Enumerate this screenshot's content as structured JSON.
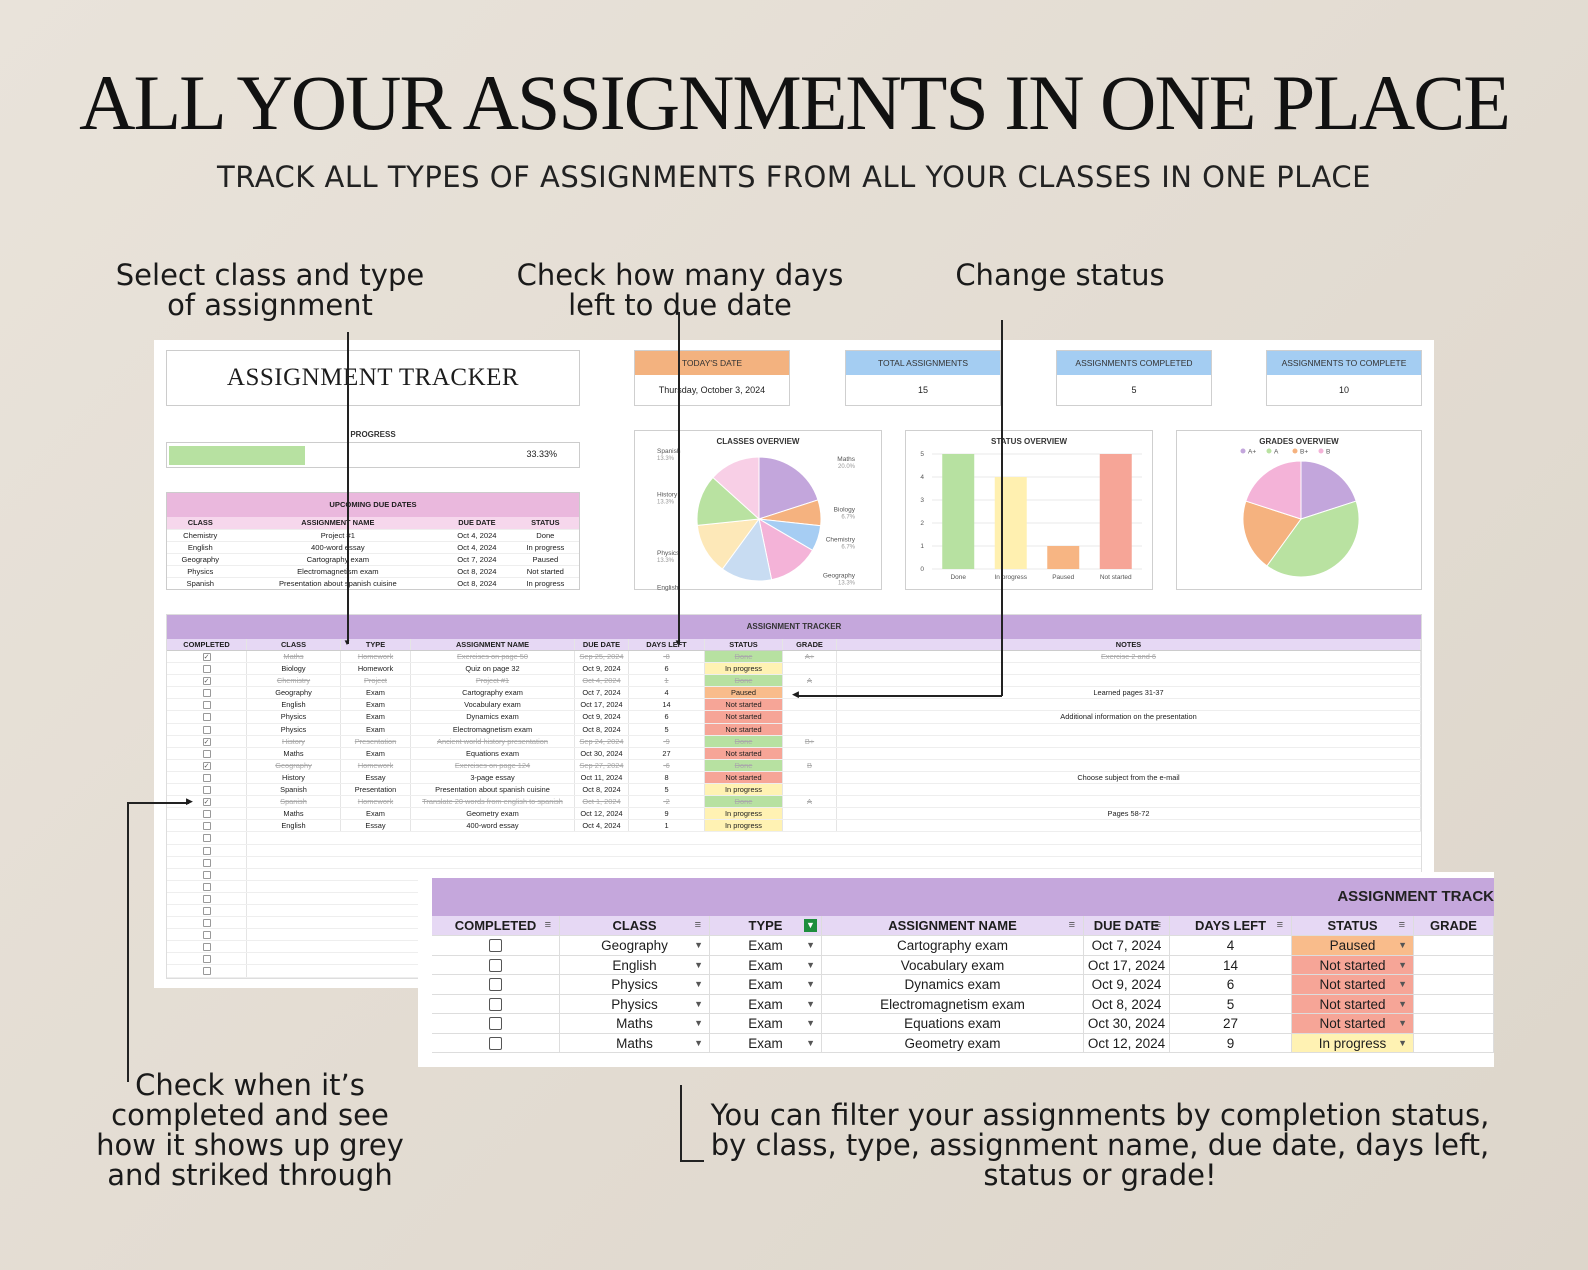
{
  "headline": "ALL YOUR ASSIGNMENTS IN ONE PLACE",
  "subheadline": "TRACK ALL TYPES OF ASSIGNMENTS FROM ALL YOUR CLASSES IN ONE PLACE",
  "callouts": {
    "select": [
      "Select class and type",
      "of assignment"
    ],
    "days": [
      "Check how many days",
      "left to due date"
    ],
    "status": [
      "Change status"
    ],
    "check": [
      "Check when it’s",
      "completed and see",
      "how it shows up grey",
      "and striked through"
    ],
    "filter": [
      "You can filter your assignments by completion status,",
      "by class, type, assignment name, due date, days left,",
      "status or grade!"
    ]
  },
  "dashboard": {
    "title": "ASSIGNMENT TRACKER",
    "cards": [
      {
        "label": "TODAY'S DATE",
        "value": "Thursday, October 3, 2024",
        "color": "#f3b27f"
      },
      {
        "label": "TOTAL ASSIGNMENTS",
        "value": "15",
        "color": "#a4cdf2"
      },
      {
        "label": "ASSIGNMENTS COMPLETED",
        "value": "5",
        "color": "#a4cdf2"
      },
      {
        "label": "ASSIGNMENTS TO COMPLETE",
        "value": "10",
        "color": "#a4cdf2"
      }
    ],
    "progress_label": "PROGRESS",
    "progress_value": "33.33%",
    "progress_fraction": 0.3333,
    "upcoming": {
      "title": "UPCOMING DUE DATES",
      "columns": [
        "CLASS",
        "ASSIGNMENT NAME",
        "DUE DATE",
        "STATUS"
      ],
      "rows": [
        [
          "Chemistry",
          "Project #1",
          "Oct 4, 2024",
          "Done"
        ],
        [
          "English",
          "400-word essay",
          "Oct 4, 2024",
          "In progress"
        ],
        [
          "Geography",
          "Cartography exam",
          "Oct 7, 2024",
          "Paused"
        ],
        [
          "Physics",
          "Electromagnetism exam",
          "Oct 8, 2024",
          "Not started"
        ],
        [
          "Spanish",
          "Presentation about spanish cuisine",
          "Oct 8, 2024",
          "In progress"
        ]
      ]
    }
  },
  "chart_data": [
    {
      "type": "pie",
      "title": "CLASSES OVERVIEW",
      "categories": [
        "Maths",
        "Biology",
        "Chemistry",
        "Geography",
        "English",
        "Physics",
        "History",
        "Spanish"
      ],
      "values": [
        20.0,
        6.7,
        6.7,
        13.3,
        13.3,
        13.3,
        13.3,
        13.3
      ],
      "labels": [
        "20.0%",
        "6.7%",
        "6.7%",
        "13.3%",
        "13.3%",
        "13.3%",
        "13.3%",
        "13.3%"
      ],
      "colors": [
        "#c3a6dc",
        "#f5b27f",
        "#a6cdf3",
        "#f4b3d8",
        "#c8dcf2",
        "#fde8b8",
        "#b9e2a1",
        "#f8cfe6"
      ]
    },
    {
      "type": "bar",
      "title": "STATUS OVERVIEW",
      "categories": [
        "Done",
        "In progress",
        "Paused",
        "Not started"
      ],
      "values": [
        5,
        4,
        1,
        5
      ],
      "ylim": [
        0,
        5
      ],
      "yticks": [
        "0",
        "1",
        "2",
        "3",
        "4",
        "5"
      ],
      "colors": [
        "#b7e1a1",
        "#fff0b0",
        "#f7b583",
        "#f6a597"
      ]
    },
    {
      "type": "pie",
      "title": "GRADES OVERVIEW",
      "categories": [
        "A+",
        "A",
        "B+",
        "B"
      ],
      "values": [
        1,
        2,
        1,
        1
      ],
      "colors": [
        "#c3a6dc",
        "#b9e2a1",
        "#f5b27f",
        "#f4b3d8"
      ]
    }
  ],
  "tracker": {
    "title": "ASSIGNMENT TRACKER",
    "columns": [
      "COMPLETED",
      "CLASS",
      "TYPE",
      "ASSIGNMENT NAME",
      "DUE DATE",
      "DAYS LEFT",
      "STATUS",
      "GRADE",
      "NOTES"
    ],
    "rows": [
      {
        "done": true,
        "class": "Maths",
        "type": "Homework",
        "name": "Exercises on page 50",
        "due": "Sep 25, 2024",
        "days": "-8",
        "status": "Done",
        "grade": "A+",
        "notes": "Exercise 2 and 6"
      },
      {
        "done": false,
        "class": "Biology",
        "type": "Homework",
        "name": "Quiz on page 32",
        "due": "Oct 9, 2024",
        "days": "6",
        "status": "In progress",
        "grade": "",
        "notes": ""
      },
      {
        "done": true,
        "class": "Chemistry",
        "type": "Project",
        "name": "Project #1",
        "due": "Oct 4, 2024",
        "days": "1",
        "status": "Done",
        "grade": "A",
        "notes": ""
      },
      {
        "done": false,
        "class": "Geography",
        "type": "Exam",
        "name": "Cartography exam",
        "due": "Oct 7, 2024",
        "days": "4",
        "status": "Paused",
        "grade": "",
        "notes": "Learned pages 31-37"
      },
      {
        "done": false,
        "class": "English",
        "type": "Exam",
        "name": "Vocabulary exam",
        "due": "Oct 17, 2024",
        "days": "14",
        "status": "Not started",
        "grade": "",
        "notes": ""
      },
      {
        "done": false,
        "class": "Physics",
        "type": "Exam",
        "name": "Dynamics exam",
        "due": "Oct 9, 2024",
        "days": "6",
        "status": "Not started",
        "grade": "",
        "notes": "Additional information on the presentation"
      },
      {
        "done": false,
        "class": "Physics",
        "type": "Exam",
        "name": "Electromagnetism exam",
        "due": "Oct 8, 2024",
        "days": "5",
        "status": "Not started",
        "grade": "",
        "notes": ""
      },
      {
        "done": true,
        "class": "History",
        "type": "Presentation",
        "name": "Ancient world history presentation",
        "due": "Sep 24, 2024",
        "days": "-9",
        "status": "Done",
        "grade": "B+",
        "notes": ""
      },
      {
        "done": false,
        "class": "Maths",
        "type": "Exam",
        "name": "Equations exam",
        "due": "Oct 30, 2024",
        "days": "27",
        "status": "Not started",
        "grade": "",
        "notes": ""
      },
      {
        "done": true,
        "class": "Geography",
        "type": "Homework",
        "name": "Exercises on page 124",
        "due": "Sep 27, 2024",
        "days": "-6",
        "status": "Done",
        "grade": "B",
        "notes": ""
      },
      {
        "done": false,
        "class": "History",
        "type": "Essay",
        "name": "3-page essay",
        "due": "Oct 11, 2024",
        "days": "8",
        "status": "Not started",
        "grade": "",
        "notes": "Choose subject from the e-mail"
      },
      {
        "done": false,
        "class": "Spanish",
        "type": "Presentation",
        "name": "Presentation about spanish cuisine",
        "due": "Oct 8, 2024",
        "days": "5",
        "status": "In progress",
        "grade": "",
        "notes": ""
      },
      {
        "done": true,
        "class": "Spanish",
        "type": "Homework",
        "name": "Translate 20 words from english to spanish",
        "due": "Oct 1, 2024",
        "days": "-2",
        "status": "Done",
        "grade": "A",
        "notes": ""
      },
      {
        "done": false,
        "class": "Maths",
        "type": "Exam",
        "name": "Geometry exam",
        "due": "Oct 12, 2024",
        "days": "9",
        "status": "In progress",
        "grade": "",
        "notes": "Pages 58-72"
      },
      {
        "done": false,
        "class": "English",
        "type": "Essay",
        "name": "400-word essay",
        "due": "Oct 4, 2024",
        "days": "1",
        "status": "In progress",
        "grade": "",
        "notes": ""
      }
    ]
  },
  "zoom": {
    "title": "ASSIGNMENT TRACK",
    "columns": [
      "COMPLETED",
      "CLASS",
      "TYPE",
      "ASSIGNMENT NAME",
      "DUE DATE",
      "DAYS LEFT",
      "STATUS",
      "GRADE"
    ],
    "rows": [
      {
        "class": "Geography",
        "type": "Exam",
        "name": "Cartography exam",
        "due": "Oct 7, 2024",
        "days": "4",
        "status": "Paused"
      },
      {
        "class": "English",
        "type": "Exam",
        "name": "Vocabulary exam",
        "due": "Oct 17, 2024",
        "days": "14",
        "status": "Not started"
      },
      {
        "class": "Physics",
        "type": "Exam",
        "name": "Dynamics exam",
        "due": "Oct 9, 2024",
        "days": "6",
        "status": "Not started"
      },
      {
        "class": "Physics",
        "type": "Exam",
        "name": "Electromagnetism exam",
        "due": "Oct 8, 2024",
        "days": "5",
        "status": "Not started"
      },
      {
        "class": "Maths",
        "type": "Exam",
        "name": "Equations exam",
        "due": "Oct 30, 2024",
        "days": "27",
        "status": "Not started"
      },
      {
        "class": "Maths",
        "type": "Exam",
        "name": "Geometry exam",
        "due": "Oct 12, 2024",
        "days": "9",
        "status": "In progress"
      }
    ]
  }
}
